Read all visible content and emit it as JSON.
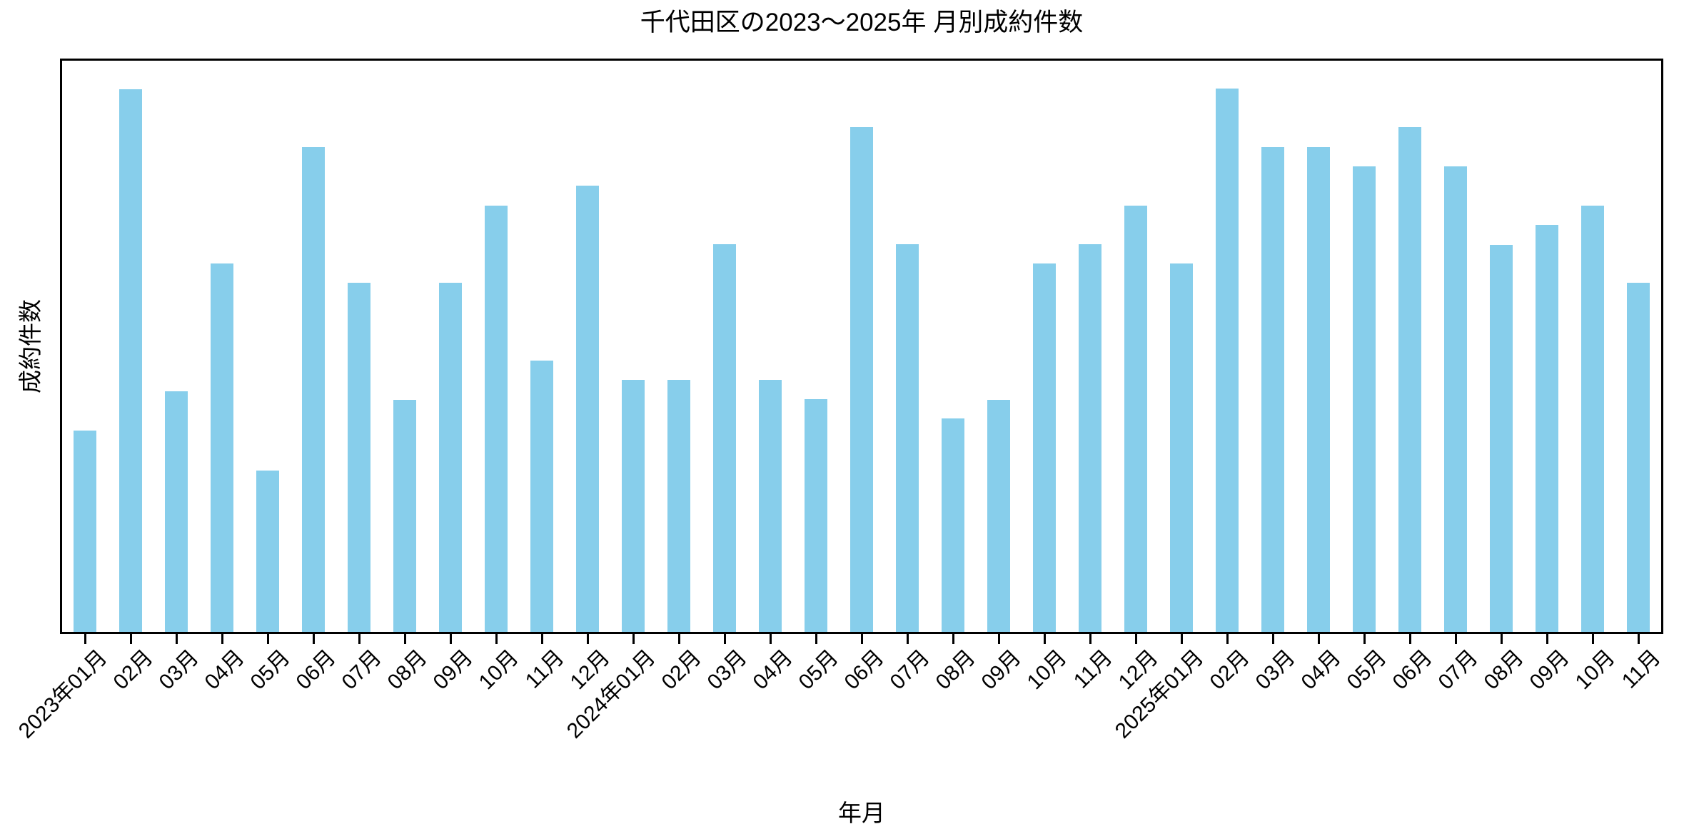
{
  "chart_data": {
    "type": "bar",
    "title": "千代田区の2023～2025年 月別成約件数",
    "xlabel": "年月",
    "ylabel": "成約件数",
    "bar_color": "#87CEEB",
    "axis_color": "#000000",
    "background_color": "#ffffff",
    "grid": false,
    "legend": false,
    "y_tick_labels": [],
    "x_tick_label_rotation_deg": 45,
    "categories": [
      "2023年01月",
      "02月",
      "03月",
      "04月",
      "05月",
      "06月",
      "07月",
      "08月",
      "09月",
      "10月",
      "11月",
      "12月",
      "2024年01月",
      "02月",
      "03月",
      "04月",
      "05月",
      "06月",
      "07月",
      "08月",
      "09月",
      "10月",
      "11月",
      "12月",
      "2025年01月",
      "02月",
      "03月",
      "04月",
      "05月",
      "06月",
      "07月",
      "08月",
      "09月",
      "10月",
      "11月"
    ],
    "series": [
      {
        "name": "成約件数",
        "values_pct_of_plot_height": [
          35.3,
          95.0,
          42.1,
          64.5,
          28.3,
          84.9,
          61.1,
          40.6,
          61.1,
          74.6,
          47.5,
          78.1,
          44.1,
          44.1,
          67.9,
          44.1,
          40.8,
          88.4,
          67.9,
          37.4,
          40.6,
          64.5,
          67.9,
          74.6,
          64.5,
          95.1,
          84.9,
          84.9,
          81.5,
          88.4,
          81.5,
          67.8,
          71.3,
          74.6,
          61.1
        ]
      }
    ]
  }
}
